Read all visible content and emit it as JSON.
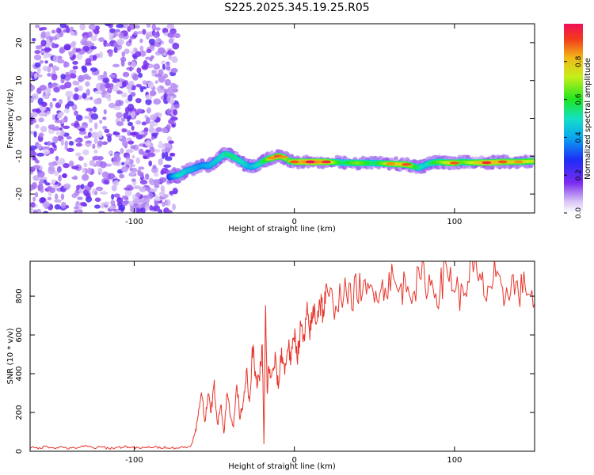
{
  "title": "S225.2025.345.19.25.R05",
  "colors": {
    "snr_line": "#e8342a",
    "frame": "#000000",
    "background": "#ffffff"
  },
  "chart_data": [
    {
      "type": "heatmap",
      "name": "spectrogram",
      "xlabel": "Height of straight line (km)",
      "ylabel": "Frequency (Hz)",
      "xlim": [
        -165,
        150
      ],
      "ylim": [
        -25,
        25
      ],
      "xticks": [
        -100,
        0,
        100
      ],
      "yticks": [
        -20,
        -10,
        0,
        10,
        20
      ],
      "x_tick_labels": [
        "-100",
        "0",
        "100"
      ],
      "y_tick_labels": [
        "-20",
        "-10",
        "0",
        "10",
        "20"
      ],
      "grid": false,
      "colorbar": {
        "label": "Normalized spectral amplitude",
        "range": [
          0,
          1
        ],
        "ticks": [
          0.0,
          0.2,
          0.4,
          0.6,
          0.8
        ],
        "tick_labels": [
          "0.0",
          "0.2",
          "0.4",
          "0.6",
          "0.8"
        ],
        "colormap": "rainbow"
      },
      "noise_region": {
        "x_range": [
          -165,
          -73
        ],
        "y_range": [
          -25,
          25
        ],
        "amplitude": "0.1-0.3"
      },
      "trace": {
        "x": [
          -78,
          -72,
          -68,
          -63,
          -58,
          -53,
          -48,
          -44,
          -41,
          -37,
          -33,
          -30,
          -27,
          -24,
          -20,
          -17,
          -14,
          -10,
          -7,
          -3,
          0,
          10,
          20,
          30,
          40,
          50,
          60,
          70,
          75,
          78,
          82,
          85,
          90,
          95,
          100,
          105,
          110,
          120,
          130,
          140,
          150
        ],
        "frequency": [
          -15.5,
          -15.0,
          -14.0,
          -13.3,
          -12.5,
          -12.5,
          -11.0,
          -9.5,
          -9.6,
          -10.5,
          -11.5,
          -12.5,
          -12.8,
          -12.5,
          -11.5,
          -10.8,
          -10.5,
          -10.0,
          -10.2,
          -11.3,
          -11.5,
          -11.5,
          -11.5,
          -11.7,
          -11.8,
          -11.8,
          -12.0,
          -12.2,
          -12.8,
          -13.0,
          -12.3,
          -11.8,
          -11.5,
          -11.7,
          -11.8,
          -11.5,
          -11.7,
          -11.7,
          -11.5,
          -11.5,
          -11.3
        ],
        "amplitude": [
          0.3,
          0.55,
          0.5,
          0.45,
          0.4,
          0.45,
          0.5,
          0.55,
          0.6,
          0.6,
          0.55,
          0.5,
          0.45,
          0.5,
          0.6,
          0.7,
          0.85,
          0.9,
          0.85,
          0.7,
          0.9,
          1.0,
          0.95,
          0.6,
          0.75,
          0.6,
          0.85,
          0.9,
          0.7,
          0.6,
          0.5,
          0.6,
          0.7,
          0.8,
          0.9,
          0.7,
          0.8,
          0.95,
          0.9,
          0.85,
          0.8
        ]
      }
    },
    {
      "type": "line",
      "name": "snr",
      "xlabel": "Height of straight line (km)",
      "ylabel": "SNR (10 * v/v)",
      "xlim": [
        -165,
        150
      ],
      "ylim": [
        0,
        980
      ],
      "xticks": [
        -100,
        0,
        100
      ],
      "yticks": [
        0,
        200,
        400,
        600,
        800
      ],
      "x_tick_labels": [
        "-100",
        "0",
        "100"
      ],
      "y_tick_labels": [
        "0",
        "200",
        "400",
        "600",
        "800"
      ],
      "grid": false,
      "series": [
        {
          "color": "#e8342a",
          "x": [
            -165,
            -160,
            -155,
            -150,
            -145,
            -140,
            -135,
            -130,
            -125,
            -120,
            -115,
            -110,
            -105,
            -100,
            -95,
            -90,
            -85,
            -80,
            -75,
            -70,
            -65,
            -62,
            -60,
            -58,
            -56,
            -54,
            -52,
            -50,
            -48,
            -46,
            -44,
            -42,
            -40,
            -38,
            -36,
            -34,
            -32,
            -30,
            -28,
            -26,
            -24,
            -22,
            -20,
            -19,
            -18,
            -17,
            -16,
            -14,
            -12,
            -10,
            -8,
            -6,
            -4,
            -2,
            0,
            2,
            4,
            6,
            8,
            10,
            12,
            14,
            16,
            18,
            20,
            25,
            30,
            35,
            40,
            45,
            50,
            55,
            60,
            65,
            70,
            75,
            80,
            85,
            90,
            95,
            100,
            105,
            110,
            115,
            120,
            125,
            130,
            135,
            140,
            145,
            150
          ],
          "y": [
            20,
            15,
            25,
            18,
            22,
            14,
            20,
            26,
            17,
            22,
            15,
            20,
            24,
            18,
            16,
            22,
            19,
            21,
            17,
            20,
            23,
            90,
            180,
            320,
            150,
            290,
            210,
            340,
            130,
            260,
            90,
            300,
            200,
            120,
            350,
            180,
            250,
            420,
            230,
            540,
            350,
            380,
            520,
            40,
            740,
            300,
            430,
            380,
            470,
            330,
            520,
            410,
            560,
            460,
            610,
            500,
            640,
            560,
            700,
            620,
            730,
            690,
            780,
            720,
            800,
            760,
            820,
            790,
            850,
            800,
            860,
            830,
            900,
            820,
            870,
            840,
            900,
            860,
            820,
            940,
            860,
            780,
            960,
            880,
            820,
            900,
            780,
            880,
            820,
            860,
            760
          ]
        }
      ]
    }
  ]
}
